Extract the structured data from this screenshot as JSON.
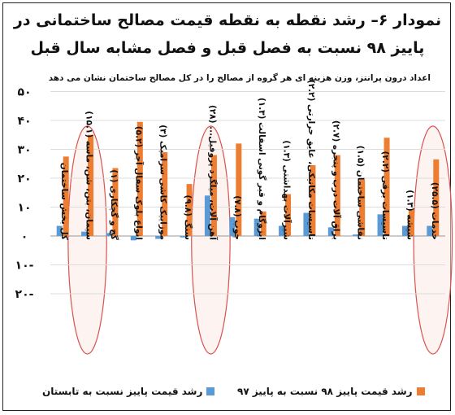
{
  "title_line1": "نمودار ۶– رشد نقطه به نقطه قیمت مصالح ساختمانی در",
  "title_line2": "پاییز ۹۸ نسبت به فصل قبل و فصل مشابه سال قبل",
  "note": "اعداد درون پرانتز، وزن هزینه ای هر گروه از مصالح را در کل مصالح ساختمان نشان می دهد",
  "colors": {
    "seasonal": "#5b9bd5",
    "annual": "#ed7d31",
    "ellipse": "#d9534f"
  },
  "chart_data": {
    "type": "bar",
    "ylim": [
      -20,
      50
    ],
    "yticks": [
      -20,
      -10,
      0,
      10,
      20,
      30,
      40,
      50
    ],
    "ytick_labels": [
      "۲۰-",
      "۱۰-",
      "۰",
      "۱۰",
      "۲۰",
      "۳۰",
      "۴۰",
      "۵۰"
    ],
    "categories": [
      "کل بخش ساختمان",
      "سیمان، بتن، شن، ماسه (۱۵.۱)",
      "گچ و گچکاری (۱)",
      "انواع بلوک سفال آجر (۵.۲)",
      "موزاییک کاشی سرامیک (۳)",
      "سنگ (۹.۸)",
      "آهن آلات، میلگرد پروفیل... (۲۸)",
      "چوب (۷.۸)",
      "ایزوگام و قیر گونی اسفالت (۱.۳)",
      "شیرآلات بهداشتی (۱.۳)",
      "تاسیسات مکانیکی، عایق حرارتی (۲.۲)",
      "یراق آلات درب و پنجره (۲.۷)",
      "نقاشی ساختمان (۱.۵)",
      "تاسیسات برقی (۲.۲)",
      "شیشه (۱.۳)",
      "خدمات (۲۵.۵)"
    ],
    "series": [
      {
        "name": "رشد قیمت پاییز نسبت به تابستان",
        "values": [
          3.5,
          1.5,
          1,
          -1.5,
          -1,
          -0.5,
          14,
          6.5,
          6,
          3.5,
          8,
          3,
          0.5,
          7.5,
          3.5,
          3.5
        ]
      },
      {
        "name": "رشد قیمت پاییز ۹۸ نسبت به پاییز ۹۷",
        "values": [
          27.5,
          35,
          23.5,
          39.5,
          29,
          18,
          28,
          32,
          8.5,
          14.5,
          24.5,
          28,
          19.5,
          34,
          9,
          26.5
        ]
      }
    ],
    "highlighted": [
      "سیمان، بتن، شن، ماسه (۱۵.۱)",
      "آهن آلات، میلگرد پروفیل... (۲۸)",
      "خدمات (۲۵.۵)"
    ]
  },
  "legend": {
    "seasonal_label": "رشد قیمت پاییز نسبت به تابستان",
    "annual_label": "رشد قیمت پاییز ۹۸ نسبت به پاییز ۹۷"
  }
}
